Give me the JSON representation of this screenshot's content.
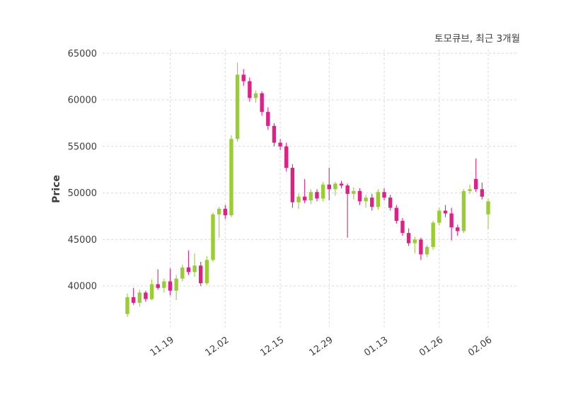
{
  "title": "토모큐브, 최근 3개월",
  "ylabel": "Price",
  "colors": {
    "up": "#9acd32",
    "down": "#de2186",
    "grid": "#d9d9d9",
    "text": "#3d3d3d",
    "background": "#ffffff"
  },
  "chart_data": {
    "type": "candlestick",
    "title": "토모큐브, 최근 3개월",
    "ylabel": "Price",
    "ylim": [
      35600,
      65400
    ],
    "yticks": [
      40000,
      45000,
      50000,
      55000,
      60000,
      65000
    ],
    "xticks": [
      {
        "index": 7,
        "label": "11.19"
      },
      {
        "index": 16,
        "label": "12.02"
      },
      {
        "index": 25,
        "label": "12.15"
      },
      {
        "index": 33,
        "label": "12.29"
      },
      {
        "index": 42,
        "label": "01.13"
      },
      {
        "index": 51,
        "label": "01.26"
      },
      {
        "index": 59,
        "label": "02.06"
      }
    ],
    "grid": "dashed",
    "legend": "none",
    "candle_format": [
      "open",
      "high",
      "low",
      "close"
    ],
    "candles": [
      [
        37000,
        39200,
        36700,
        38800
      ],
      [
        38800,
        39800,
        38000,
        38200
      ],
      [
        38200,
        39600,
        37800,
        39300
      ],
      [
        39300,
        39500,
        38300,
        38600
      ],
      [
        38600,
        40700,
        38500,
        40200
      ],
      [
        40200,
        41800,
        39600,
        39800
      ],
      [
        39800,
        40800,
        39300,
        40500
      ],
      [
        40500,
        41900,
        39000,
        39500
      ],
      [
        39500,
        41200,
        38500,
        40800
      ],
      [
        40800,
        42300,
        40500,
        42000
      ],
      [
        42000,
        43800,
        41200,
        41500
      ],
      [
        41500,
        43500,
        41000,
        42200
      ],
      [
        42200,
        42600,
        40000,
        40300
      ],
      [
        40300,
        43200,
        40100,
        42800
      ],
      [
        42800,
        47900,
        42600,
        47700
      ],
      [
        47700,
        48500,
        45200,
        48300
      ],
      [
        48300,
        48700,
        47200,
        47600
      ],
      [
        47600,
        56200,
        47400,
        55800
      ],
      [
        55800,
        64000,
        55500,
        62700
      ],
      [
        62700,
        63300,
        61500,
        62000
      ],
      [
        62000,
        62400,
        59800,
        60200
      ],
      [
        60200,
        61000,
        59700,
        60700
      ],
      [
        60700,
        60900,
        58300,
        58700
      ],
      [
        58700,
        59200,
        56800,
        57200
      ],
      [
        57200,
        57500,
        55000,
        55400
      ],
      [
        55400,
        55800,
        54600,
        55000
      ],
      [
        55000,
        55400,
        52300,
        52700
      ],
      [
        52700,
        53100,
        48400,
        49000
      ],
      [
        49000,
        49900,
        48300,
        49600
      ],
      [
        49600,
        51500,
        48900,
        49200
      ],
      [
        49200,
        50400,
        48800,
        50100
      ],
      [
        50100,
        50400,
        49100,
        49400
      ],
      [
        49400,
        51200,
        49100,
        50900
      ],
      [
        50900,
        52700,
        49200,
        50400
      ],
      [
        50400,
        51200,
        49700,
        51000
      ],
      [
        51000,
        51300,
        50500,
        50800
      ],
      [
        50800,
        51000,
        45200,
        49900
      ],
      [
        49900,
        50600,
        49300,
        50200
      ],
      [
        50200,
        50500,
        48700,
        49100
      ],
      [
        49100,
        49800,
        48400,
        49500
      ],
      [
        49500,
        49900,
        48100,
        48500
      ],
      [
        48500,
        50400,
        48200,
        50100
      ],
      [
        50100,
        50500,
        49200,
        49500
      ],
      [
        49500,
        49800,
        48100,
        48400
      ],
      [
        48400,
        48700,
        46700,
        47000
      ],
      [
        47000,
        47300,
        45400,
        45700
      ],
      [
        45700,
        46200,
        44300,
        44600
      ],
      [
        44600,
        45300,
        43500,
        45000
      ],
      [
        45000,
        45200,
        42800,
        43400
      ],
      [
        43400,
        44400,
        43100,
        44200
      ],
      [
        44200,
        47000,
        43900,
        46800
      ],
      [
        46800,
        48400,
        46500,
        48100
      ],
      [
        48100,
        48700,
        47400,
        47800
      ],
      [
        47800,
        48400,
        44900,
        46300
      ],
      [
        46300,
        46600,
        45400,
        45900
      ],
      [
        45900,
        50400,
        45700,
        50200
      ],
      [
        50200,
        50900,
        49900,
        50400
      ],
      [
        51500,
        53700,
        50100,
        50400
      ],
      [
        50400,
        51100,
        49300,
        49600
      ],
      [
        47700,
        49400,
        46100,
        49100
      ]
    ]
  }
}
